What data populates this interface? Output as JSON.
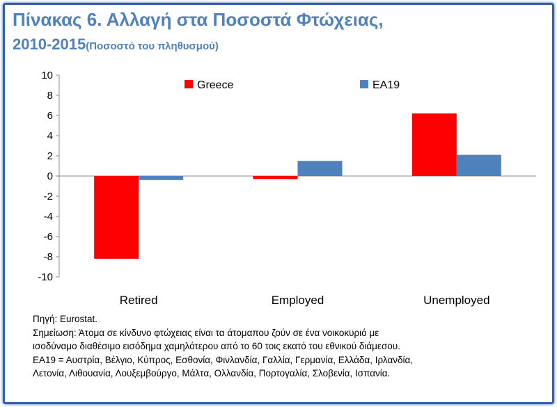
{
  "title": {
    "line1": "Πίνακας 6.  Αλλαγή στα Ποσοστά Φτώχειας,",
    "line2": "2010-2015",
    "subtitle": "(Ποσοστό του πληθυσμού)"
  },
  "chart_data": {
    "type": "bar",
    "categories": [
      "Retired",
      "Employed",
      "Unemployed"
    ],
    "series": [
      {
        "name": "Greece",
        "values": [
          -8.2,
          -0.3,
          6.2
        ],
        "color": "#ff0000"
      },
      {
        "name": "EA19",
        "values": [
          -0.4,
          1.5,
          2.1
        ],
        "color": "#4f81bd"
      }
    ],
    "ylim": [
      -10,
      10
    ],
    "yticks": [
      10,
      8,
      6,
      4,
      2,
      0,
      -2,
      -4,
      -6,
      -8,
      -10
    ],
    "legend": "top",
    "xlabel": "",
    "ylabel": ""
  },
  "notes": {
    "source": "Πηγή: Eurostat.",
    "line1": "Σημείωση: Άτομα σε κίνδυνο φτώχειας είναι τα άτομαπου ζούν σε ένα νοικοκυριό με",
    "line2": "ισοδύναμο διαθέσιμο εισόδημα χαμηλότερου από το 60 τοις εκατό του εθνικού  διάμεσου.",
    "line3": "ΕΑ19 = Αυστρία, Βέλγιο, Κύπρος, Εσθονία, Φινλανδία, Γαλλία, Γερμανία, Ελλάδα, Ιρλανδία,",
    "line4": "Λετονία, Λιθουανία, Λουξεμβούργο, Μάλτα, Ολλανδία, Πορτογαλία, Σλοβενία, Ισπανία."
  }
}
